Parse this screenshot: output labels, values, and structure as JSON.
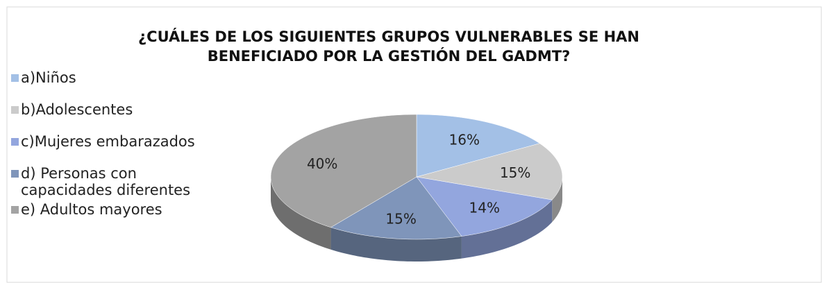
{
  "chart_data": {
    "type": "pie",
    "title": [
      "¿CUÁLES DE LOS SIGUIENTES GRUPOS VULNERABLES SE HAN",
      "BENEFICIADO POR LA GESTIÓN DEL GADMT?"
    ],
    "categories": [
      "a)Niños",
      "b)Adolescentes",
      "c)Mujeres embarazados",
      "d) Personas con capacidades diferentes",
      "e)  Adultos mayores"
    ],
    "values": [
      16,
      15,
      14,
      15,
      40
    ],
    "value_labels": [
      "16%",
      "15%",
      "14%",
      "15%",
      "40%"
    ],
    "colors": [
      "#a3c0e6",
      "#cbcbcb",
      "#93a6de",
      "#7f95ba",
      "#a3a3a3"
    ],
    "legend": "left"
  }
}
